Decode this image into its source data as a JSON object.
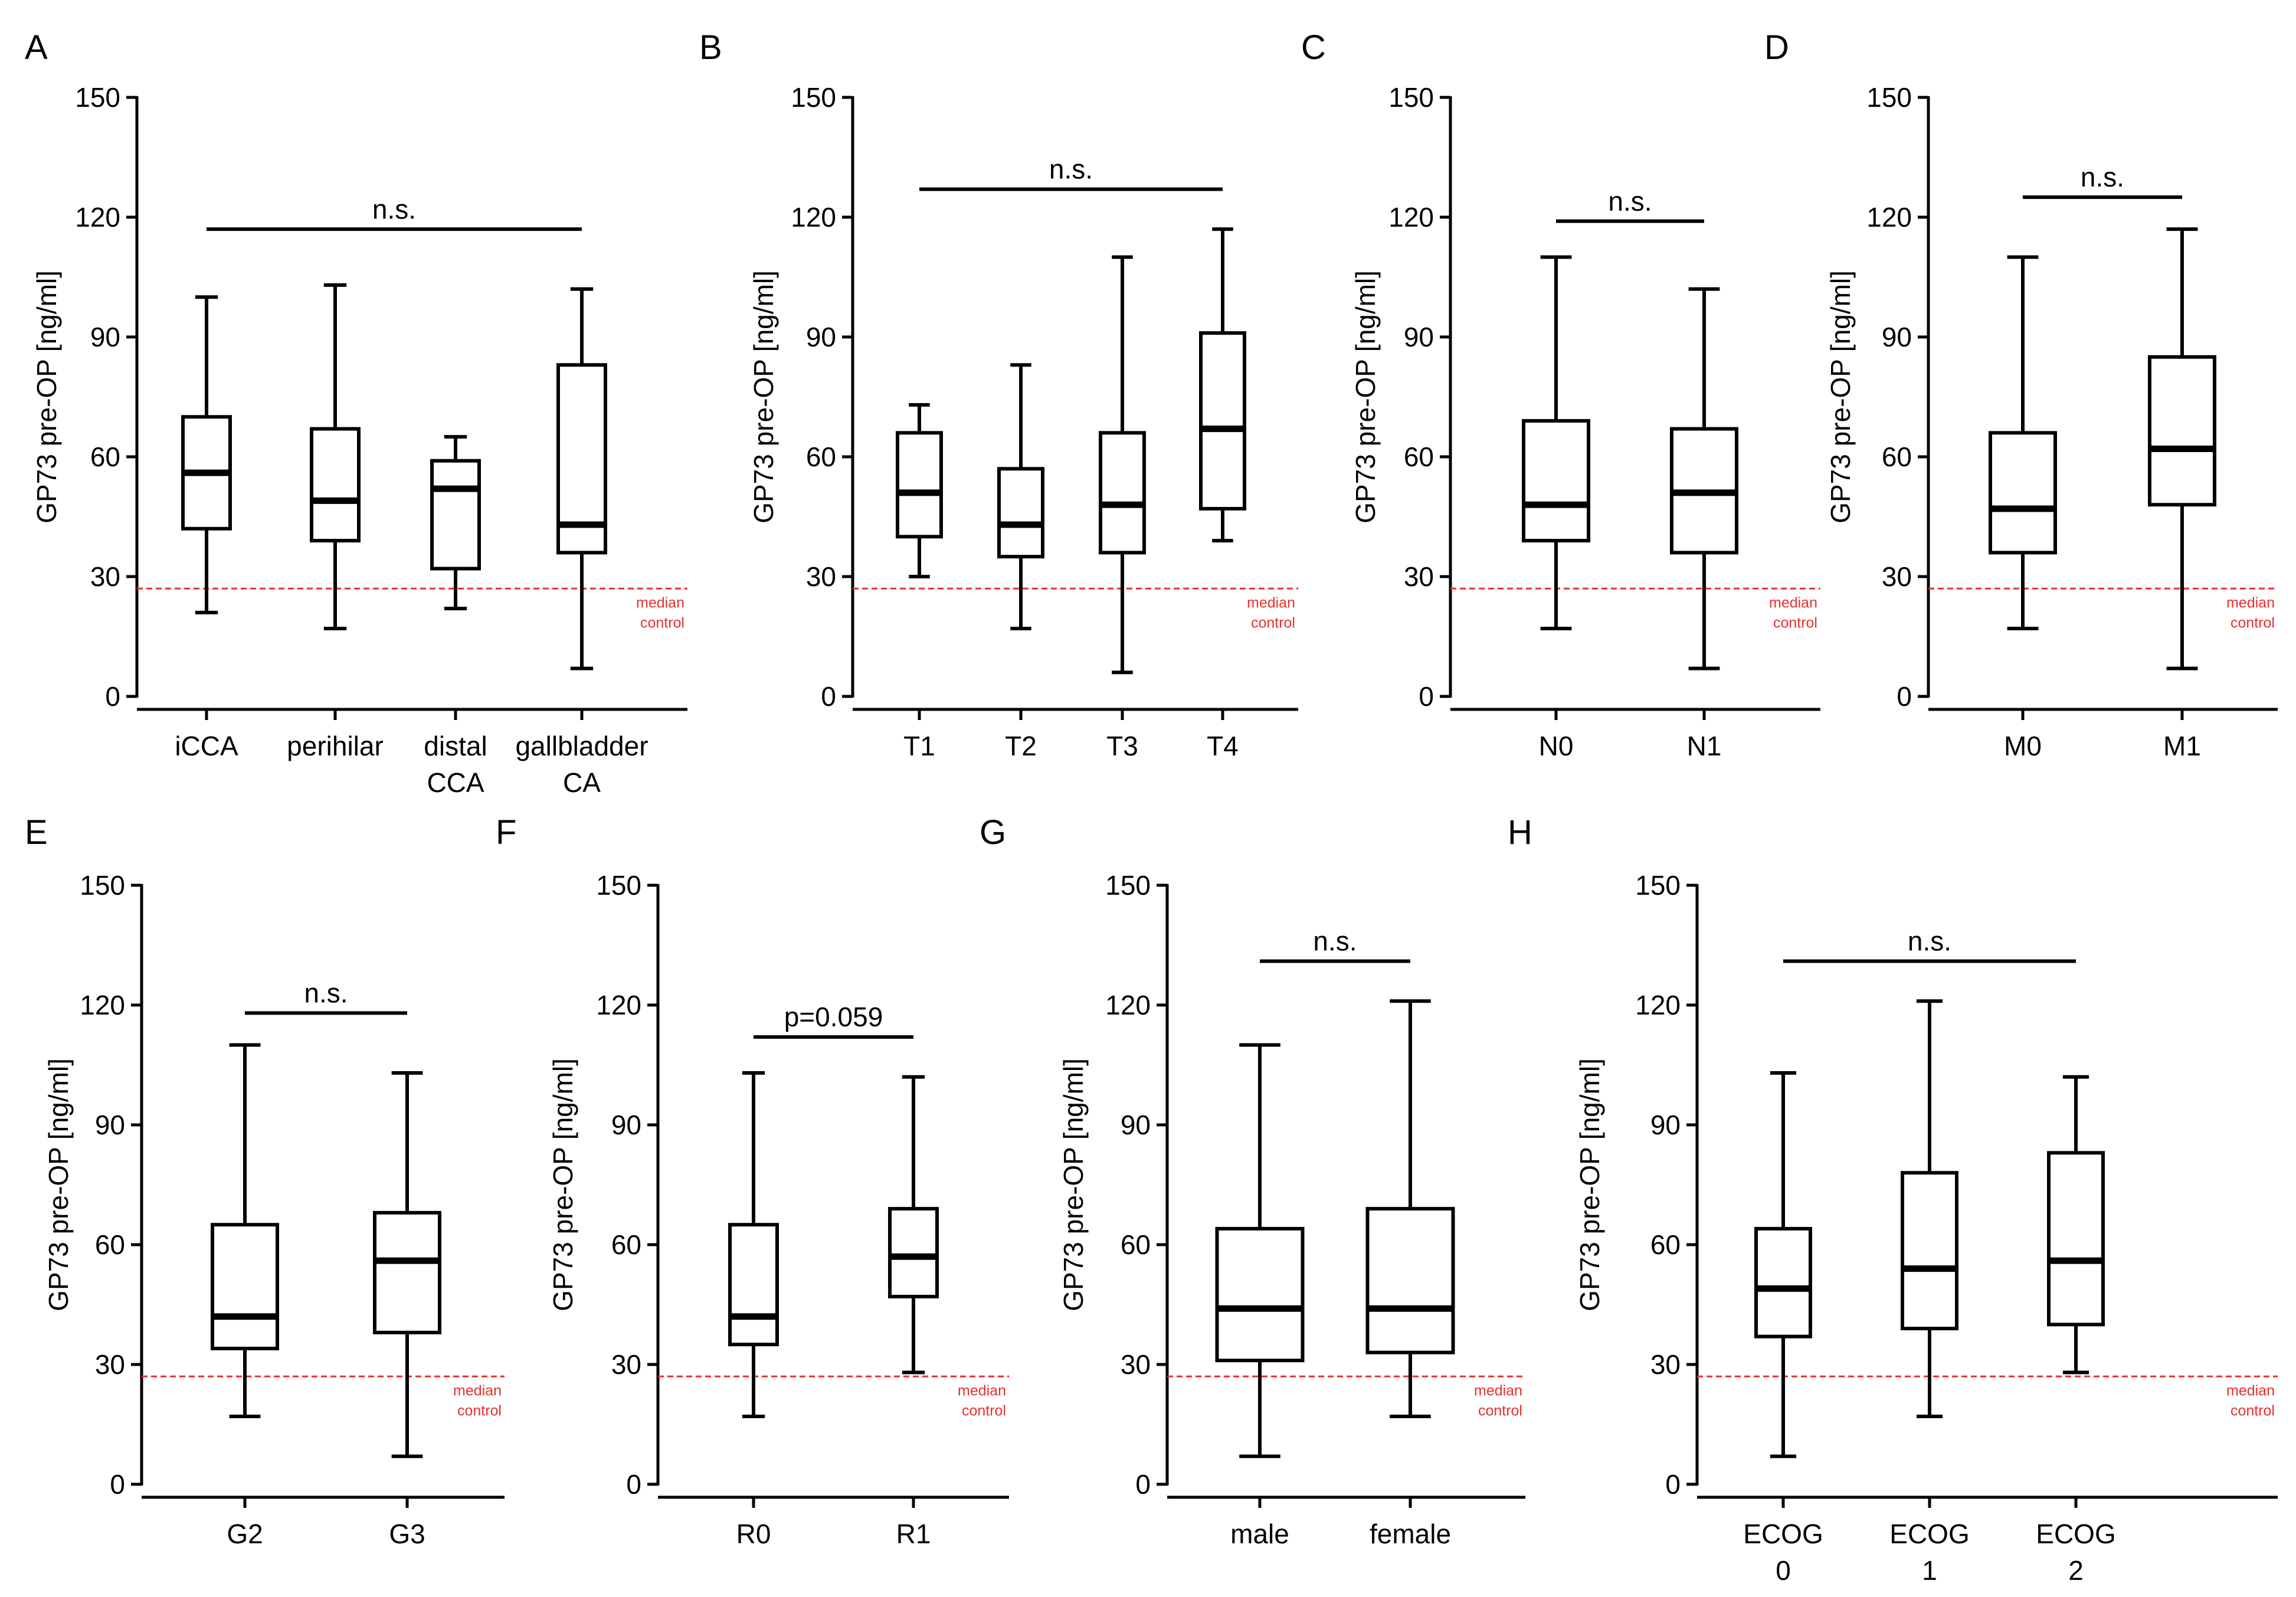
{
  "colors": {
    "axis": "#000000",
    "control_line": "#e53030",
    "box_fill": "#ffffff"
  },
  "chart_data": [
    {
      "panel": "A",
      "type": "box",
      "ylabel": "GP73 pre-OP [ng/ml]",
      "ylim": [
        0,
        150
      ],
      "yticks": [
        0,
        30,
        60,
        90,
        120,
        150
      ],
      "categories": [
        [
          "iCCA"
        ],
        [
          "perihilar"
        ],
        [
          "distal",
          "CCA"
        ],
        [
          "gallbladder",
          "CA"
        ]
      ],
      "boxes": [
        {
          "min": 21,
          "q1": 42,
          "median": 56,
          "q3": 70,
          "max": 100
        },
        {
          "min": 17,
          "q1": 39,
          "median": 49,
          "q3": 67,
          "max": 103
        },
        {
          "min": 22,
          "q1": 32,
          "median": 52,
          "q3": 59,
          "max": 65
        },
        {
          "min": 7,
          "q1": 36,
          "median": 43,
          "q3": 83,
          "max": 102
        }
      ],
      "significance": {
        "label": "n.s.",
        "from": 0,
        "to": 3,
        "y": 117
      },
      "control": {
        "value": 27,
        "label": [
          "median",
          "control"
        ]
      }
    },
    {
      "panel": "B",
      "type": "box",
      "ylabel": "GP73 pre-OP [ng/ml]",
      "ylim": [
        0,
        150
      ],
      "yticks": [
        0,
        30,
        60,
        90,
        120,
        150
      ],
      "categories": [
        [
          "T1"
        ],
        [
          "T2"
        ],
        [
          "T3"
        ],
        [
          "T4"
        ]
      ],
      "boxes": [
        {
          "min": 30,
          "q1": 40,
          "median": 51,
          "q3": 66,
          "max": 73
        },
        {
          "min": 17,
          "q1": 35,
          "median": 43,
          "q3": 57,
          "max": 83
        },
        {
          "min": 6,
          "q1": 36,
          "median": 48,
          "q3": 66,
          "max": 110
        },
        {
          "min": 39,
          "q1": 47,
          "median": 67,
          "q3": 91,
          "max": 117
        }
      ],
      "significance": {
        "label": "n.s.",
        "from": 0,
        "to": 3,
        "y": 127
      },
      "control": {
        "value": 27,
        "label": [
          "median",
          "control"
        ]
      }
    },
    {
      "panel": "C",
      "type": "box",
      "ylabel": "GP73 pre-OP [ng/ml]",
      "ylim": [
        0,
        150
      ],
      "yticks": [
        0,
        30,
        60,
        90,
        120,
        150
      ],
      "categories": [
        [
          "N0"
        ],
        [
          "N1"
        ]
      ],
      "boxes": [
        {
          "min": 17,
          "q1": 39,
          "median": 48,
          "q3": 69,
          "max": 110
        },
        {
          "min": 7,
          "q1": 36,
          "median": 51,
          "q3": 67,
          "max": 102
        }
      ],
      "significance": {
        "label": "n.s.",
        "from": 0,
        "to": 1,
        "y": 119
      },
      "control": {
        "value": 27,
        "label": [
          "median",
          "control"
        ]
      }
    },
    {
      "panel": "D",
      "type": "box",
      "ylabel": "GP73 pre-OP [ng/ml]",
      "ylim": [
        0,
        150
      ],
      "yticks": [
        0,
        30,
        60,
        90,
        120,
        150
      ],
      "categories": [
        [
          "M0"
        ],
        [
          "M1"
        ]
      ],
      "boxes": [
        {
          "min": 17,
          "q1": 36,
          "median": 47,
          "q3": 66,
          "max": 110
        },
        {
          "min": 7,
          "q1": 48,
          "median": 62,
          "q3": 85,
          "max": 117
        }
      ],
      "significance": {
        "label": "n.s.",
        "from": 0,
        "to": 1,
        "y": 125
      },
      "control": {
        "value": 27,
        "label": [
          "median",
          "control"
        ]
      }
    },
    {
      "panel": "E",
      "type": "box",
      "ylabel": "GP73 pre-OP [ng/ml]",
      "ylim": [
        0,
        150
      ],
      "yticks": [
        0,
        30,
        60,
        90,
        120,
        150
      ],
      "categories": [
        [
          "G2"
        ],
        [
          "G3"
        ]
      ],
      "boxes": [
        {
          "min": 17,
          "q1": 34,
          "median": 42,
          "q3": 65,
          "max": 110
        },
        {
          "min": 7,
          "q1": 38,
          "median": 56,
          "q3": 68,
          "max": 103
        }
      ],
      "significance": {
        "label": "n.s.",
        "from": 0,
        "to": 1,
        "y": 118
      },
      "control": {
        "value": 27,
        "label": [
          "median",
          "control"
        ]
      }
    },
    {
      "panel": "F",
      "type": "box",
      "ylabel": "GP73 pre-OP [ng/ml]",
      "ylim": [
        0,
        150
      ],
      "yticks": [
        0,
        30,
        60,
        90,
        120,
        150
      ],
      "categories": [
        [
          "R0"
        ],
        [
          "R1"
        ]
      ],
      "boxes": [
        {
          "min": 17,
          "q1": 35,
          "median": 42,
          "q3": 65,
          "max": 103
        },
        {
          "min": 28,
          "q1": 47,
          "median": 57,
          "q3": 69,
          "max": 102
        }
      ],
      "significance": {
        "label": "p=0.059",
        "from": 0,
        "to": 1,
        "y": 112
      },
      "control": {
        "value": 27,
        "label": [
          "median",
          "control"
        ]
      }
    },
    {
      "panel": "G",
      "type": "box",
      "ylabel": "GP73 pre-OP [ng/ml]",
      "ylim": [
        0,
        150
      ],
      "yticks": [
        0,
        30,
        60,
        90,
        120,
        150
      ],
      "categories": [
        [
          "male"
        ],
        [
          "female"
        ]
      ],
      "boxes": [
        {
          "min": 7,
          "q1": 31,
          "median": 44,
          "q3": 64,
          "max": 110
        },
        {
          "min": 17,
          "q1": 33,
          "median": 44,
          "q3": 69,
          "max": 121
        }
      ],
      "significance": {
        "label": "n.s.",
        "from": 0,
        "to": 1,
        "y": 131
      },
      "control": {
        "value": 27,
        "label": [
          "median",
          "control"
        ]
      }
    },
    {
      "panel": "H",
      "type": "box",
      "ylabel": "GP73 pre-OP [ng/ml]",
      "ylim": [
        0,
        150
      ],
      "yticks": [
        0,
        30,
        60,
        90,
        120,
        150
      ],
      "categories": [
        [
          "ECOG",
          "0"
        ],
        [
          "ECOG",
          "1"
        ],
        [
          "ECOG",
          "2"
        ]
      ],
      "boxes": [
        {
          "min": 7,
          "q1": 37,
          "median": 49,
          "q3": 64,
          "max": 103
        },
        {
          "min": 17,
          "q1": 39,
          "median": 54,
          "q3": 78,
          "max": 121
        },
        {
          "min": 28,
          "q1": 40,
          "median": 56,
          "q3": 83,
          "max": 102
        }
      ],
      "significance": {
        "label": "n.s.",
        "from": 0,
        "to": 2,
        "y": 131
      },
      "control": {
        "value": 27,
        "label": [
          "median",
          "control"
        ]
      }
    }
  ]
}
